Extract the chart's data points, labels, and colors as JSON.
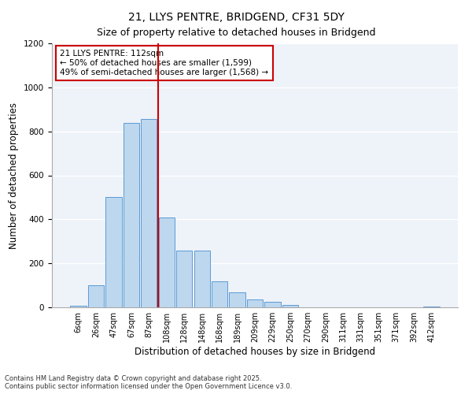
{
  "title": "21, LLYS PENTRE, BRIDGEND, CF31 5DY",
  "subtitle": "Size of property relative to detached houses in Bridgend",
  "xlabel": "Distribution of detached houses by size in Bridgend",
  "ylabel": "Number of detached properties",
  "bar_labels": [
    "6sqm",
    "26sqm",
    "47sqm",
    "67sqm",
    "87sqm",
    "108sqm",
    "128sqm",
    "148sqm",
    "168sqm",
    "189sqm",
    "209sqm",
    "229sqm",
    "250sqm",
    "270sqm",
    "290sqm",
    "311sqm",
    "331sqm",
    "351sqm",
    "371sqm",
    "392sqm",
    "412sqm"
  ],
  "bar_heights": [
    8,
    100,
    500,
    840,
    855,
    410,
    258,
    258,
    120,
    68,
    35,
    25,
    12,
    0,
    0,
    0,
    0,
    0,
    0,
    0,
    3
  ],
  "bar_color": "#bdd7ee",
  "bar_edge_color": "#5b9bd5",
  "vline_x_idx": 5,
  "vline_color": "#cc0000",
  "annotation_text": "21 LLYS PENTRE: 112sqm\n← 50% of detached houses are smaller (1,599)\n49% of semi-detached houses are larger (1,568) →",
  "annotation_box_color": "#cc0000",
  "ylim": [
    0,
    1200
  ],
  "yticks": [
    0,
    200,
    400,
    600,
    800,
    1000,
    1200
  ],
  "background_color": "#eef2f9",
  "grid_color": "#ffffff",
  "footer_text": "Contains HM Land Registry data © Crown copyright and database right 2025.\nContains public sector information licensed under the Open Government Licence v3.0.",
  "title_fontsize": 10,
  "subtitle_fontsize": 9,
  "xlabel_fontsize": 8.5,
  "ylabel_fontsize": 8.5,
  "annotation_fontsize": 7.5,
  "tick_fontsize": 7,
  "ytick_fontsize": 7.5
}
